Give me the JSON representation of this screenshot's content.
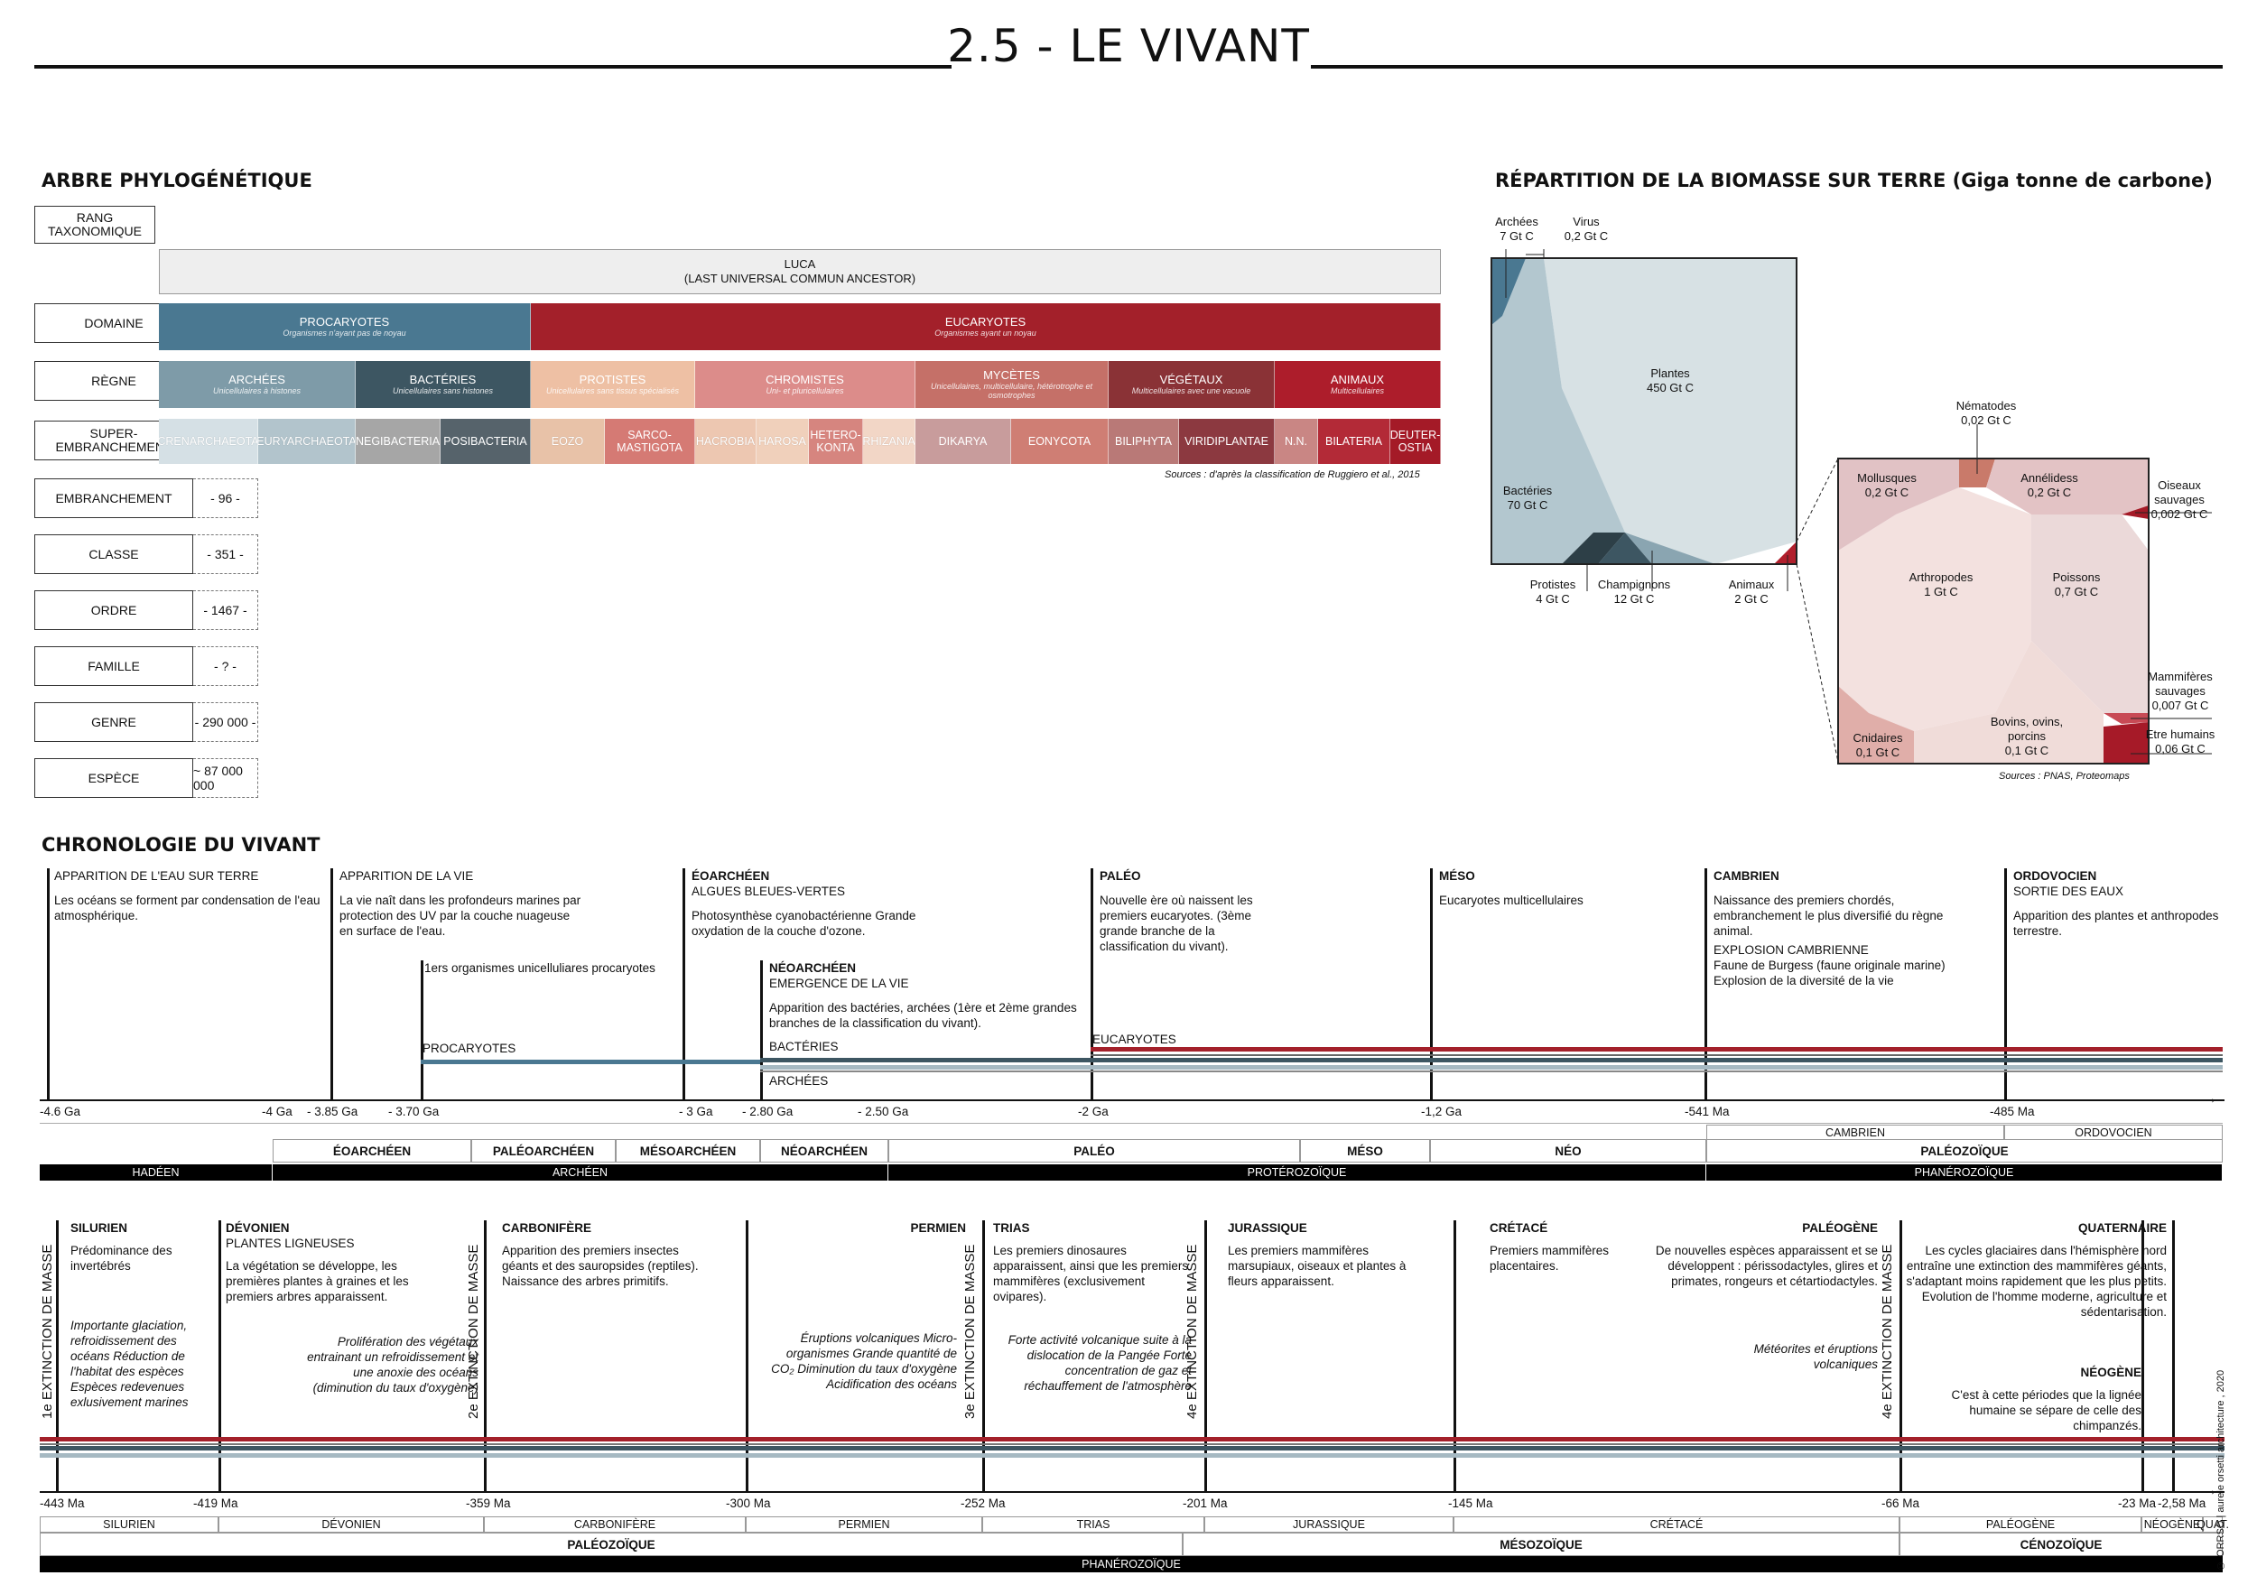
{
  "title": "2.5 - LE VIVANT",
  "copyright": "© ORRSO | aurele orsetti architecture , 2020",
  "phylo": {
    "heading": "ARBRE PHYLOGÉNÉTIQUE",
    "ranks": [
      {
        "label": "RANG\nTAXONOMIQUE",
        "count": ""
      },
      {
        "label": "DOMAINE",
        "count": ""
      },
      {
        "label": "RÈGNE",
        "count": ""
      },
      {
        "label": "SUPER-\nEMBRANCHEMENT",
        "count": ""
      },
      {
        "label": "EMBRANCHEMENT",
        "count": "- 96 -"
      },
      {
        "label": "CLASSE",
        "count": "- 351 -"
      },
      {
        "label": "ORDRE",
        "count": "- 1467 -"
      },
      {
        "label": "FAMILLE",
        "count": "- ? -"
      },
      {
        "label": "GENRE",
        "count": "- 290 000 -"
      },
      {
        "label": "ESPÈCE",
        "count": "~ 87 000 000"
      }
    ],
    "luca": {
      "name": "LUCA",
      "sub": "(LAST UNIVERSAL COMMUN ANCESTOR)"
    },
    "domains": [
      {
        "name": "PROCARYOTES",
        "sub": "Organismes n'ayant pas de noyau",
        "color": "#4a7891"
      },
      {
        "name": "EUCARYOTES",
        "sub": "Organismes ayant un noyau",
        "color": "#a3202a"
      }
    ],
    "kingdoms": [
      {
        "name": "ARCHÉES",
        "sub": "Unicellulaires à histones",
        "color": "#7e9ba8"
      },
      {
        "name": "BACTÉRIES",
        "sub": "Unicellulaires sans histones",
        "color": "#3d5662"
      },
      {
        "name": "PROTISTES",
        "sub": "Unicellulaires sans tissus spécialisés",
        "color": "#eec0a4"
      },
      {
        "name": "CHROMISTES",
        "sub": "Uni- et pluricellulaires",
        "color": "#dc8c8a"
      },
      {
        "name": "MYCÈTES",
        "sub": "Unicellulaires, multicellulaire, hétérotrophe et osmotrophes",
        "color": "#c57068"
      },
      {
        "name": "VÉGÉTAUX",
        "sub": "Multicellulaires avec une vacuole",
        "color": "#8a3236"
      },
      {
        "name": "ANIMAUX",
        "sub": "Multicellulaires",
        "color": "#ad1d2b"
      }
    ],
    "phyla": [
      {
        "name": "CRENARCHAEOTA",
        "color": "#d5e0e5"
      },
      {
        "name": "EURYARCHAEOTA",
        "color": "#b2c4cc"
      },
      {
        "name": "NEGIBACTERIA",
        "color": "#a6a6a6"
      },
      {
        "name": "POSIBACTERIA",
        "color": "#56636b"
      },
      {
        "name": "EOZO",
        "color": "#e8c2a8"
      },
      {
        "name": "SARCO-\nMASTIGOTA",
        "color": "#d57a74"
      },
      {
        "name": "HACROBIA",
        "color": "#edc7b1"
      },
      {
        "name": "HAROSA",
        "color": "#f0d0bb"
      },
      {
        "name": "HETERO-\nKONTA",
        "color": "#d6857f"
      },
      {
        "name": "RHIZANIA",
        "color": "#f2d6c6"
      },
      {
        "name": "DIKARYA",
        "color": "#c89c9c"
      },
      {
        "name": "EONYCOTA",
        "color": "#cf7e74"
      },
      {
        "name": "BILIPHYTA",
        "color": "#b97977"
      },
      {
        "name": "VIRIDIPLANTAE",
        "color": "#8c3940"
      },
      {
        "name": "N.N.",
        "color": "#c98684"
      },
      {
        "name": "BILATERIA",
        "color": "#b32a37"
      },
      {
        "name": "DEUTER-\nOSTIA",
        "color": "#a41a27"
      }
    ],
    "source": "Sources : d'après la classification de Ruggiero et al., 2015"
  },
  "biomass": {
    "heading": "RÉPARTITION DE LA BIOMASSE SUR TERRE (Giga tonne de carbone)",
    "main": [
      {
        "label": "Archées",
        "value": "7 Gt C"
      },
      {
        "label": "Virus",
        "value": "0,2 Gt C"
      },
      {
        "label": "Plantes",
        "value": "450 Gt C"
      },
      {
        "label": "Bactéries",
        "value": "70 Gt C"
      },
      {
        "label": "Protistes",
        "value": "4 Gt C"
      },
      {
        "label": "Champignons",
        "value": "12 Gt C"
      },
      {
        "label": "Animaux",
        "value": "2 Gt C"
      }
    ],
    "animals": [
      {
        "label": "Nématodes",
        "value": "0,02 Gt C"
      },
      {
        "label": "Mollusques",
        "value": "0,2 Gt C"
      },
      {
        "label": "Annélidess",
        "value": "0,2 Gt C"
      },
      {
        "label": "Oiseaux sauvages",
        "value": "0,002 Gt C"
      },
      {
        "label": "Arthropodes",
        "value": "1 Gt C"
      },
      {
        "label": "Poissons",
        "value": "0,7 Gt C"
      },
      {
        "label": "Mammifères sauvages",
        "value": "0,007 Gt C"
      },
      {
        "label": "Etre humains",
        "value": "0,06 Gt C"
      },
      {
        "label": "Cnidaires",
        "value": "0,1 Gt C"
      },
      {
        "label": "Bovins, ovins, porcins",
        "value": "0,1 Gt C"
      }
    ],
    "source": "Sources : PNAS, Proteomaps"
  },
  "chrono": {
    "heading": "CHRONOLOGIE DU VIVANT",
    "top_events": [
      {
        "title": "APPARITION DE L'EAU SUR TERRE",
        "text": "Les océans se forment par condensation de l'eau atmosphérique."
      },
      {
        "title": "APPARITION DE LA VIE",
        "text": "La vie naît dans les profondeurs marines par protection des UV par la couche nuageuse en surface de l'eau."
      },
      {
        "title": "1ers organismes unicelluliares procaryotes",
        "text": ""
      },
      {
        "title": "ÉOARCHÉEN",
        "sub": "ALGUES BLEUES-VERTES",
        "text": "Photosynthèse cyanobactérienne Grande oxydation de la couche d'ozone."
      },
      {
        "title": "NÉOARCHÉEN",
        "sub": "EMERGENCE DE LA VIE",
        "text": "Apparition des bactéries, archées (1ère et 2ème grandes branches de la classification du vivant)."
      },
      {
        "title": "PALÉO",
        "text": "Nouvelle ère où naissent les premiers eucaryotes. (3ème grande branche de la classification du vivant)."
      },
      {
        "title": "MÉSO",
        "text": "Eucaryotes multicellulaires"
      },
      {
        "title": "CAMBRIEN",
        "text": "Naissance des premiers chordés, embranchement le plus diversifié du règne animal.",
        "sub": "EXPLOSION CAMBRIENNE",
        "text2": "Faune de Burgess (faune originale marine) Explosion de la diversité de la vie"
      },
      {
        "title": "ORDOVOCIEN",
        "sub": "SORTIE DES EAUX",
        "text": "Apparition des plantes et anthropodes terrestre."
      }
    ],
    "lineage_labels": {
      "procaryotes": "PROCARYOTES",
      "bacteries": "BACTÉRIES",
      "archees": "ARCHÉES",
      "eucaryotes": "EUCARYOTES"
    },
    "top_ticks": [
      "-4.6 Ga",
      "-4 Ga",
      "- 3.85 Ga",
      "- 3.70 Ga",
      "- 3 Ga",
      "- 2.80 Ga",
      "- 2.50 Ga",
      "-2 Ga",
      "-1,2 Ga",
      "-541 Ma",
      "-485 Ma"
    ],
    "top_periods_row1": [
      "ÉOARCHÉEN",
      "PALÉOARCHÉEN",
      "MÉSOARCHÉEN",
      "NÉOARCHÉEN",
      "PALÉO",
      "MÉSO",
      "NÉO"
    ],
    "top_periods_row0": [
      "CAMBRIEN",
      "ORDOVOCIEN"
    ],
    "top_periods_row1b": "PALÉOZOÏQUE",
    "top_eons": [
      "HADÉEN",
      "ARCHÉEN",
      "PROTÉROZOÏQUE",
      "PHANÉROZOÏQUE"
    ],
    "bottom_events": [
      {
        "title": "SILURIEN",
        "text": "Prédominance des invertébrés",
        "italic": "Importante glaciation, refroidissement des océans Réduction de l'habitat des espèces Espèces redevenues exlusivement marines"
      },
      {
        "title": "DÉVONIEN",
        "sub": "PLANTES LIGNEUSES",
        "text": "La végétation se développe, les premières plantes à graines et les premiers arbres apparaissent.",
        "italic": "Prolifération des végétaux entrainant un refroidissement et une anoxie des océans (diminution du taux d'oxygène)"
      },
      {
        "title": "CARBONIFÈRE",
        "text": "Apparition des premiers insectes géants et des sauropsides (reptiles). Naissance des arbres primitifs."
      },
      {
        "title": "PERMIEN",
        "text": "",
        "italic": "Éruptions volcaniques Micro-organismes Grande quantité de CO₂ Diminution du taux d'oxygène Acidification des océans"
      },
      {
        "title": "TRIAS",
        "text": "Les premiers dinosaures apparaissent, ainsi que les premiers mammifères (exclusivement ovipares).",
        "italic": "Forte activité volcanique suite à la dislocation de la Pangée Forte concentration de gaz et réchauffement de l'atmosphère"
      },
      {
        "title": "JURASSIQUE",
        "text": "Les premiers mammifères marsupiaux, oiseaux et plantes à fleurs apparaissent."
      },
      {
        "title": "CRÉTACÉ",
        "text": "Premiers mammifères placentaires."
      },
      {
        "title": "PALÉOGÈNE",
        "text": "De nouvelles espèces apparaissent et se développent : périssodactyles, glires et primates, rongeurs et cétartiodactyles.",
        "italic": "Météorites et éruptions volcaniques"
      },
      {
        "title": "QUATERNAIRE",
        "text": "Les cycles glaciaires dans l'hémisphère nord entraîne une extinction des mammifères géants, s'adaptant moins rapidement que les plus petits. Evolution de l'homme moderne, agriculture et sédentarisation."
      },
      {
        "title": "NÉOGÈNE",
        "text": "C'est à cette périodes que la lignée humaine se sépare de celle des chimpanzés."
      }
    ],
    "extinctions": [
      "1e EXTINCTION DE MASSE",
      "2e EXTINCTION DE MASSE",
      "3e EXTINCTION DE MASSE",
      "4e EXTINCTION DE MASSE",
      "4e EXTINCTION DE MASSE"
    ],
    "bottom_ticks": [
      "-443 Ma",
      "-419 Ma",
      "-359 Ma",
      "-300 Ma",
      "-252 Ma",
      "-201 Ma",
      "-145 Ma",
      "-66 Ma",
      "-23 Ma",
      "-2,58 Ma"
    ],
    "bottom_periods": [
      "SILURIEN",
      "DÉVONIEN",
      "CARBONIFÈRE",
      "PERMIEN",
      "TRIAS",
      "JURASSIQUE",
      "CRÉTACÉ",
      "PALÉOGÈNE",
      "NÉOGÈNE",
      "QUAT."
    ],
    "bottom_eras": [
      "PALÉOZOÏQUE",
      "MÉSOZOÏQUE",
      "CÉNOZOÏQUE"
    ],
    "bottom_eon": "PHANÉROZOÏQUE"
  }
}
